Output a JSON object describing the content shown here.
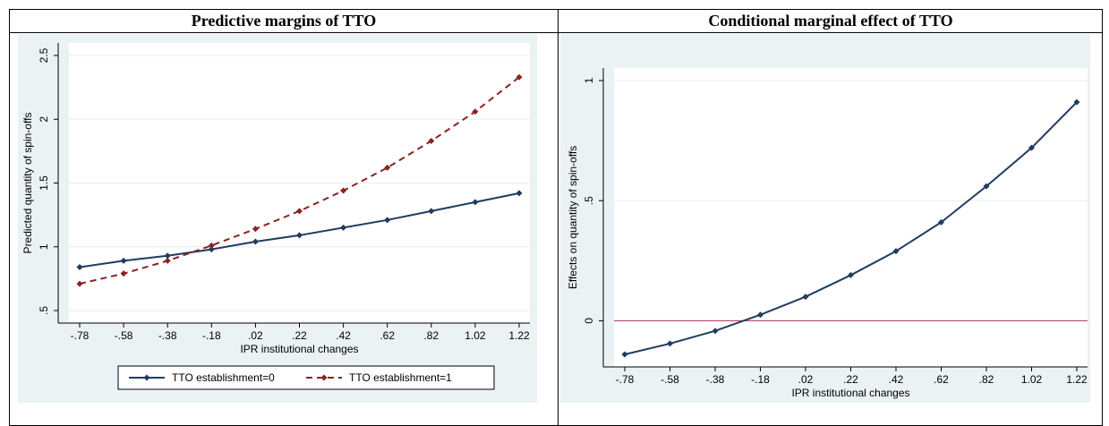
{
  "headings": {
    "left": "Predictive margins of TTO",
    "right": "Conditional marginal effect of TTO"
  },
  "chart_data": [
    {
      "type": "line",
      "xlabel": "IPR institutional changes",
      "ylabel": "Predicted quantity of spin-offs",
      "x": [
        -0.78,
        -0.58,
        -0.38,
        -0.18,
        0.02,
        0.22,
        0.42,
        0.62,
        0.82,
        1.02,
        1.22
      ],
      "x_tick_labels": [
        "-.78",
        "-.58",
        "-.38",
        "-.18",
        ".02",
        ".22",
        ".42",
        ".62",
        ".82",
        "1.02",
        "1.22"
      ],
      "y_ticks": [
        0.5,
        1,
        1.5,
        2,
        2.5
      ],
      "y_tick_labels": [
        ".5",
        "1",
        "1.5",
        "2",
        "2.5"
      ],
      "ylim": [
        0.5,
        2.5
      ],
      "grid": true,
      "legend_position": "bottom",
      "series": [
        {
          "name": "TTO establishment=0",
          "color": "#1f3c5e",
          "dash": "solid",
          "values": [
            0.84,
            0.89,
            0.93,
            0.98,
            1.04,
            1.09,
            1.15,
            1.21,
            1.28,
            1.35,
            1.42
          ]
        },
        {
          "name": "TTO establishment=1",
          "color": "#8b2323",
          "dash": "dashed",
          "values": [
            0.71,
            0.79,
            0.89,
            1.01,
            1.14,
            1.28,
            1.44,
            1.62,
            1.83,
            2.06,
            2.33
          ]
        }
      ]
    },
    {
      "type": "line",
      "xlabel": "IPR institutional changes",
      "ylabel": "Effects on quantity of spin-offs",
      "x": [
        -0.78,
        -0.58,
        -0.38,
        -0.18,
        0.02,
        0.22,
        0.42,
        0.62,
        0.82,
        1.02,
        1.22
      ],
      "x_tick_labels": [
        "-.78",
        "-.58",
        "-.38",
        "-.18",
        ".02",
        ".22",
        ".42",
        ".62",
        ".82",
        "1.02",
        "1.22"
      ],
      "y_ticks": [
        0,
        0.5,
        1
      ],
      "y_tick_labels": [
        "0",
        ".5",
        "1"
      ],
      "ylim": [
        -0.14,
        1.0
      ],
      "grid": true,
      "reference_line": {
        "y": 0,
        "color": "#b0305a"
      },
      "series": [
        {
          "color": "#1f3c5e",
          "dash": "solid",
          "values": [
            -0.14,
            -0.095,
            -0.042,
            0.025,
            0.1,
            0.19,
            0.29,
            0.41,
            0.56,
            0.72,
            0.91
          ]
        }
      ]
    }
  ]
}
